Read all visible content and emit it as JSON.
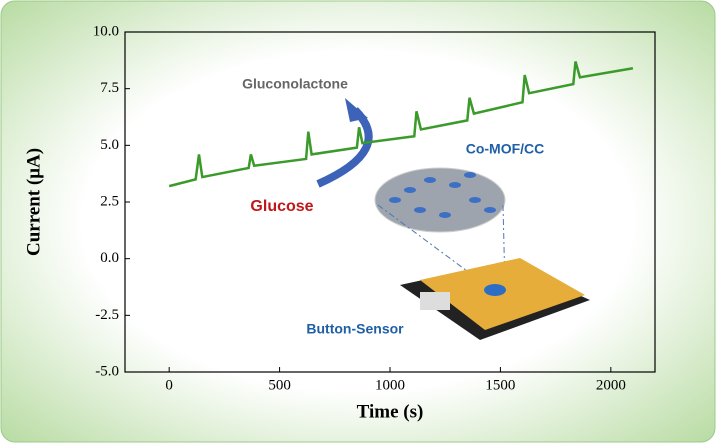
{
  "chart_data": {
    "type": "line",
    "xlabel": "Time (s)",
    "ylabel": "Current (μA)",
    "annotations": [
      "Gluconolactone",
      "Glucose",
      "Co-MOF/CC",
      "Button-Sensor"
    ],
    "x": [
      0,
      120,
      135,
      150,
      360,
      370,
      385,
      620,
      630,
      645,
      850,
      860,
      875,
      1110,
      1120,
      1140,
      1350,
      1360,
      1380,
      1600,
      1610,
      1630,
      1830,
      1840,
      1860,
      2100
    ],
    "values": [
      3.2,
      3.5,
      4.6,
      3.6,
      4.0,
      4.6,
      4.1,
      4.4,
      5.6,
      4.6,
      4.9,
      5.8,
      5.1,
      5.4,
      6.5,
      5.7,
      6.1,
      7.1,
      6.4,
      6.9,
      8.1,
      7.3,
      7.7,
      8.7,
      8.0,
      8.4
    ],
    "color": "#3a9a2a",
    "xlim": [
      -200,
      2200
    ],
    "xticks": [
      0,
      500,
      1000,
      1500,
      2000
    ],
    "ylim": [
      -5,
      10
    ],
    "yticks": [
      {
        "value": 10,
        "label": "10.0"
      },
      {
        "value": 7.5,
        "label": "7.5"
      },
      {
        "value": 5,
        "label": "5.0"
      },
      {
        "value": 2.5,
        "label": "2.5"
      },
      {
        "value": 0,
        "label": "0.0"
      },
      {
        "value": -2.5,
        "label": "-2.5"
      },
      {
        "value": -5,
        "label": "-5.0"
      }
    ]
  }
}
